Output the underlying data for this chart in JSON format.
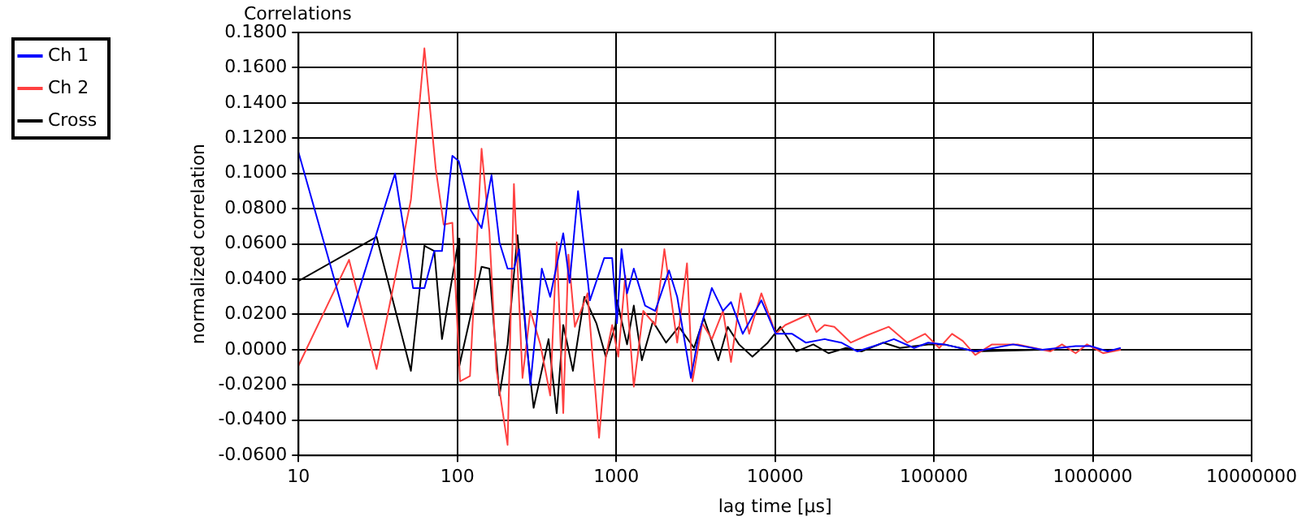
{
  "chart_data": {
    "type": "line",
    "title": "Correlations",
    "xlabel": "lag time [µs]",
    "ylabel": "normalized correlation",
    "log": "x",
    "grid": true,
    "legend": "top left",
    "marker": "none",
    "line_style": "solid",
    "xlim": [
      10,
      10000000
    ],
    "xticks": [
      10,
      100,
      1000,
      10000,
      100000,
      1000000,
      10000000
    ],
    "ylim": [
      -0.06,
      0.18
    ],
    "yticks": [
      {
        "value": -0.06,
        "label": "-0.0600"
      },
      {
        "value": -0.04,
        "label": "-0.0400"
      },
      {
        "value": -0.02,
        "label": "-0.0200"
      },
      {
        "value": 0,
        "label": "0.0000"
      },
      {
        "value": 0.02,
        "label": "0.0200"
      },
      {
        "value": 0.04,
        "label": "0.0400"
      },
      {
        "value": 0.06,
        "label": "0.0600"
      },
      {
        "value": 0.08,
        "label": "0.0800"
      },
      {
        "value": 0.1,
        "label": "0.1000"
      },
      {
        "value": 0.12,
        "label": "0.1200"
      },
      {
        "value": 0.14,
        "label": "0.1400"
      },
      {
        "value": 0.16,
        "label": "0.1600"
      },
      {
        "value": 0.18,
        "label": "0.1800"
      }
    ],
    "series": [
      {
        "name": "Ch 1",
        "color": "#0000ff",
        "x": [
          10,
          20.4,
          40.5,
          52.6,
          62,
          71.6,
          80,
          93,
          102,
          120,
          142,
          164,
          184,
          207,
          227,
          245,
          288,
          340,
          384,
          464,
          509,
          575,
          683,
          840,
          943,
          1010,
          1080,
          1170,
          1290,
          1520,
          1760,
          2150,
          2420,
          2950,
          3320,
          4000,
          4700,
          5280,
          6260,
          8200,
          10100,
          12800,
          15600,
          20500,
          26100,
          33000,
          45000,
          56000,
          75000,
          92000,
          116000,
          182000,
          315000,
          480000,
          780000,
          970000,
          1240000,
          1500000
        ],
        "values": [
          0.112,
          0.013,
          0.1,
          0.035,
          0.035,
          0.056,
          0.056,
          0.11,
          0.107,
          0.08,
          0.069,
          0.099,
          0.061,
          0.046,
          0.046,
          0.057,
          -0.02,
          0.046,
          0.03,
          0.066,
          0.038,
          0.09,
          0.028,
          0.052,
          0.052,
          0.015,
          0.057,
          0.032,
          0.046,
          0.025,
          0.022,
          0.045,
          0.03,
          -0.016,
          0.009,
          0.035,
          0.022,
          0.027,
          0.009,
          0.028,
          0.009,
          0.009,
          0.004,
          0.006,
          0.004,
          -0.001,
          0.003,
          0.006,
          0.001,
          0.004,
          0.003,
          -0.001,
          0.003,
          0,
          0.002,
          0.002,
          -0.001,
          0.001
        ]
      },
      {
        "name": "Ch 2",
        "color": "#ff4040",
        "x": [
          10,
          20.8,
          31,
          51,
          62,
          73,
          82,
          93,
          104,
          120,
          142,
          159,
          176,
          207,
          227,
          257,
          288,
          333,
          384,
          422,
          464,
          500,
          549,
          660,
          780,
          860,
          943,
          1030,
          1140,
          1290,
          1480,
          1760,
          2010,
          2420,
          2790,
          3020,
          3480,
          4000,
          4700,
          5280,
          6070,
          6870,
          8200,
          10100,
          11600,
          16200,
          18200,
          20500,
          23600,
          30000,
          37600,
          52000,
          68000,
          88000,
          108000,
          130000,
          152000,
          182000,
          232000,
          337000,
          540000,
          640000,
          780000,
          920000,
          1160000,
          1500000
        ],
        "values": [
          -0.009,
          0.051,
          -0.011,
          0.085,
          0.171,
          0.103,
          0.071,
          0.072,
          -0.018,
          -0.015,
          0.114,
          0.067,
          -0.011,
          -0.054,
          0.094,
          -0.016,
          0.022,
          0.003,
          -0.026,
          0.061,
          -0.036,
          0.054,
          0.013,
          0.032,
          -0.05,
          -0.004,
          0.014,
          -0.004,
          0.042,
          -0.021,
          0.022,
          0.014,
          0.057,
          0.004,
          0.049,
          -0.018,
          0.015,
          0.006,
          0.022,
          -0.007,
          0.032,
          0.009,
          0.032,
          0.009,
          0.014,
          0.02,
          0.01,
          0.014,
          0.013,
          0.004,
          0.008,
          0.013,
          0.004,
          0.009,
          0.001,
          0.009,
          0.005,
          -0.003,
          0.003,
          0.003,
          -0.001,
          0.003,
          -0.002,
          0.003,
          -0.002,
          0
        ]
      },
      {
        "name": "Cross",
        "color": "#000000",
        "x": [
          10,
          31,
          51,
          62,
          71.6,
          80,
          102,
          103,
          142,
          159,
          184,
          207,
          239,
          276,
          302,
          375,
          422,
          464,
          534,
          630,
          750,
          860,
          990,
          1010,
          1170,
          1290,
          1450,
          1700,
          2060,
          2480,
          3090,
          3560,
          4390,
          5040,
          5930,
          7200,
          9000,
          10800,
          13600,
          17400,
          21700,
          28000,
          35000,
          48000,
          61000,
          92000,
          116000,
          182000,
          520000,
          1500000
        ],
        "values": [
          0.039,
          0.064,
          -0.012,
          0.059,
          0.056,
          0.006,
          0.063,
          -0.009,
          0.047,
          0.046,
          -0.026,
          0.003,
          0.065,
          -0.001,
          -0.033,
          0.006,
          -0.036,
          0.014,
          -0.012,
          0.03,
          0.015,
          -0.004,
          0.014,
          0.028,
          0.003,
          0.025,
          -0.006,
          0.016,
          0.004,
          0.013,
          0.001,
          0.018,
          -0.006,
          0.013,
          0.003,
          -0.004,
          0.004,
          0.013,
          -0.001,
          0.003,
          -0.002,
          0.001,
          -0.001,
          0.004,
          0.001,
          0.003,
          0.003,
          -0.001,
          0,
          0
        ]
      }
    ]
  }
}
